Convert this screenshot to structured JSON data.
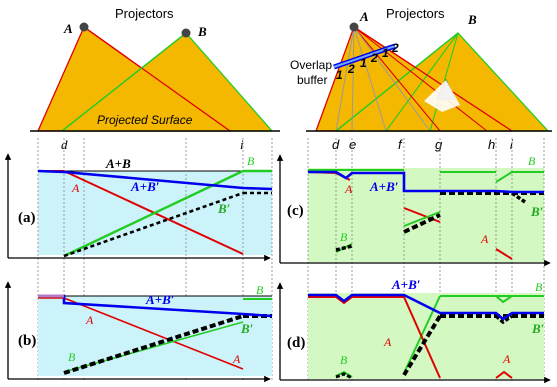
{
  "left_top": {
    "title": "Projectors",
    "projector_a": "A",
    "projector_b": "B",
    "surface_label": "Projected Surface",
    "tick_d": "d",
    "tick_i": "i"
  },
  "right_top": {
    "title": "Projectors",
    "projector_a": "A",
    "projector_b": "B",
    "overlap_label_1": "Overlap",
    "overlap_label_2": "buffer",
    "buffer_numbers": [
      "1",
      "2",
      "1",
      "2",
      "1",
      "2"
    ],
    "ticks": [
      "d",
      "e",
      "f",
      "g",
      "h",
      "i"
    ]
  },
  "panel_a": {
    "tag": "(a)",
    "sum_label": "A+B",
    "sum_prime_label": "A+B′",
    "a_label": "A",
    "b_label": "B",
    "b_prime_label": "B′"
  },
  "panel_b": {
    "tag": "(b)",
    "sum_prime_label": "A+B′",
    "a_label_1": "A",
    "a_label_2": "A",
    "b_label_1": "B",
    "b_label_2": "B",
    "b_prime_label": "B′"
  },
  "panel_c": {
    "tag": "(c)",
    "sum_prime_label": "A+B′",
    "a_label_1": "A",
    "a_label_2": "A",
    "b_label_1": "B",
    "b_label_2": "B",
    "b_prime_label": "B′"
  },
  "panel_d": {
    "tag": "(d)",
    "sum_prime_label": "A+B′",
    "a_label_1": "A",
    "a_label_2": "A",
    "b_label_1": "B",
    "b_label_2": "B",
    "b_prime_label": "B′"
  },
  "colors": {
    "projection_fill": "#f5b800",
    "red": "#e00000",
    "green": "#22cc22",
    "blue": "#0000ee",
    "cyan_panel": "#cdf3fa",
    "green_panel": "#d4f8c2"
  }
}
